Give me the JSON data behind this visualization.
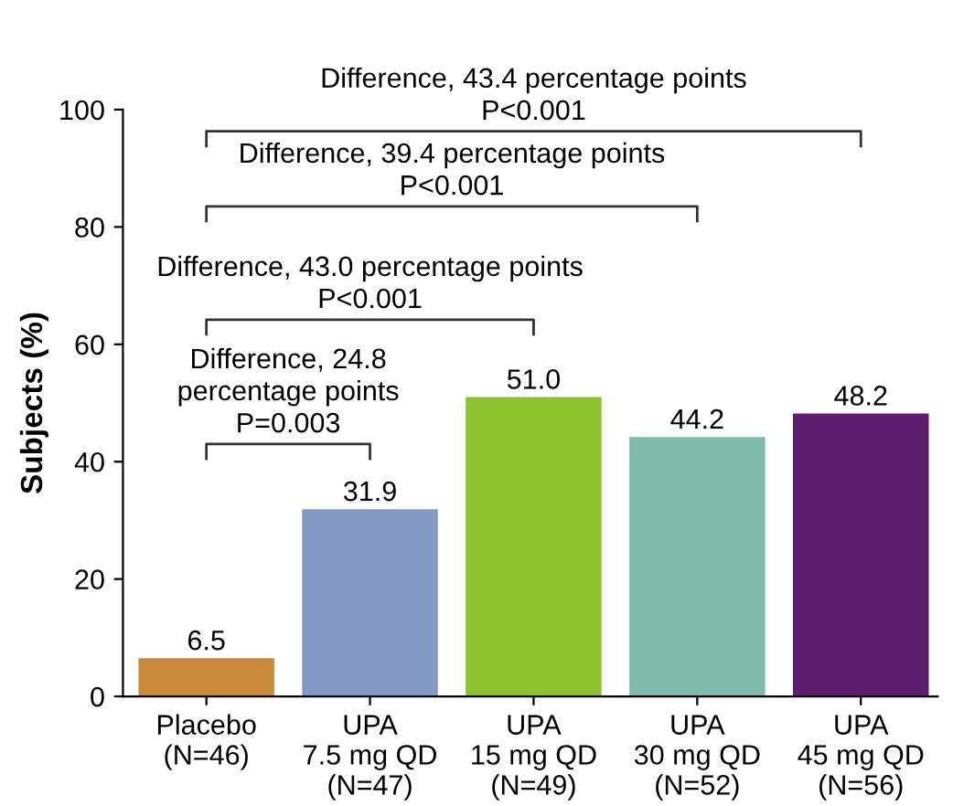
{
  "chart_data": {
    "type": "bar",
    "ylabel": "Subjects (%)",
    "categories": [
      "Placebo\n(N=46)",
      "UPA\n7.5 mg QD\n(N=47)",
      "UPA\n15 mg QD\n(N=49)",
      "UPA\n30 mg QD\n(N=52)",
      "UPA\n45 mg QD\n(N=56)"
    ],
    "values": [
      6.5,
      31.9,
      51.0,
      44.2,
      48.2
    ],
    "colors": [
      "#c98a3c",
      "#8398c2",
      "#8cc02c",
      "#80bba9",
      "#5e1c6e"
    ],
    "value_labels": [
      "6.5",
      "31.9",
      "51.0",
      "44.2",
      "48.2"
    ],
    "ylim": [
      0,
      100
    ],
    "yticks": [
      0,
      20,
      40,
      60,
      80,
      100
    ],
    "grid": false,
    "annotations": [
      "Difference, 43.4 percentage points\nP<0.001",
      "Difference, 39.4 percentage points\nP<0.001",
      "Difference, 43.0 percentage points\nP<0.001",
      "Difference, 24.8\npercentage points\nP=0.003"
    ]
  }
}
